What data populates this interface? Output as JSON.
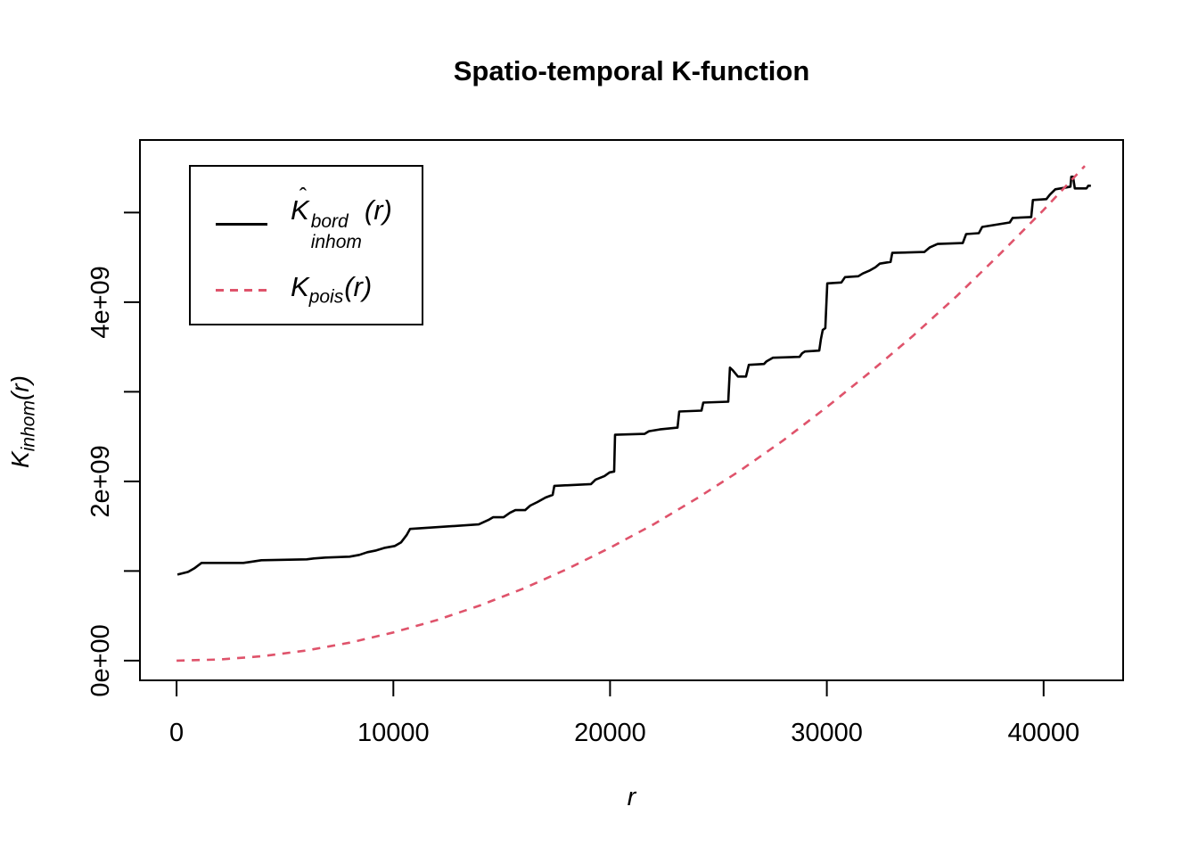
{
  "title": "Spatio-temporal K-function",
  "x_axis_label": "r",
  "y_axis_label": {
    "base": "K",
    "sub": "inhom",
    "arg": "(r)"
  },
  "legend": {
    "entries": [
      {
        "base": "K",
        "hat": "ˆ",
        "sup": "bord",
        "sub": "inhom",
        "arg": "(r)",
        "line": "solid",
        "color": "#000000"
      },
      {
        "base": "K",
        "hat": "",
        "sup": "",
        "sub": "pois",
        "arg": "(r)",
        "line": "dashed",
        "color": "#DF536B"
      }
    ]
  },
  "chart_data": {
    "type": "line",
    "title": "Spatio-temporal K-function",
    "xlabel": "r",
    "ylabel": "K_inhom(r)",
    "xlim": [
      -1690,
      43670
    ],
    "ylim": [
      -220000000,
      5810000000
    ],
    "grid": false,
    "legend_position": "top-left",
    "x_ticks": {
      "values": [
        0,
        10000,
        20000,
        30000,
        40000
      ],
      "labels": [
        "0",
        "10000",
        "20000",
        "30000",
        "40000"
      ]
    },
    "y_ticks": {
      "values": [
        0,
        1000000000.0,
        2000000000.0,
        3000000000.0,
        4000000000.0,
        5000000000.0
      ],
      "labels": [
        "0e+00",
        "",
        "2e+09",
        "",
        "4e+09",
        ""
      ]
    },
    "series": [
      {
        "name": "Khat-inhom-bord",
        "color": "#000000",
        "dash": "solid",
        "points": [
          [
            40,
            960000000.0
          ],
          [
            530,
            990000000.0
          ],
          [
            820,
            1030000000.0
          ],
          [
            1150,
            1090000000.0
          ],
          [
            3080,
            1090000000.0
          ],
          [
            3370,
            1100000000.0
          ],
          [
            3910,
            1120000000.0
          ],
          [
            6000,
            1130000000.0
          ],
          [
            6330,
            1140000000.0
          ],
          [
            6870,
            1150000000.0
          ],
          [
            7980,
            1160000000.0
          ],
          [
            8430,
            1180000000.0
          ],
          [
            8800,
            1210000000.0
          ],
          [
            9210,
            1230000000.0
          ],
          [
            9620,
            1260000000.0
          ],
          [
            10070,
            1280000000.0
          ],
          [
            10360,
            1320000000.0
          ],
          [
            10610,
            1400000000.0
          ],
          [
            10770,
            1470000000.0
          ],
          [
            13940,
            1520000000.0
          ],
          [
            14390,
            1570000000.0
          ],
          [
            14600,
            1600000000.0
          ],
          [
            15090,
            1600000000.0
          ],
          [
            15380,
            1650000000.0
          ],
          [
            15630,
            1680000000.0
          ],
          [
            16080,
            1680000000.0
          ],
          [
            16320,
            1730000000.0
          ],
          [
            16650,
            1770000000.0
          ],
          [
            17020,
            1820000000.0
          ],
          [
            17350,
            1850000000.0
          ],
          [
            17430,
            1950000000.0
          ],
          [
            19120,
            1970000000.0
          ],
          [
            19330,
            2020000000.0
          ],
          [
            19740,
            2060000000.0
          ],
          [
            19980,
            2100000000.0
          ],
          [
            20190,
            2110000000.0
          ],
          [
            20230,
            2520000000.0
          ],
          [
            21590,
            2530000000.0
          ],
          [
            21790,
            2560000000.0
          ],
          [
            22290,
            2580000000.0
          ],
          [
            22700,
            2590000000.0
          ],
          [
            23110,
            2600000000.0
          ],
          [
            23190,
            2780000000.0
          ],
          [
            24220,
            2790000000.0
          ],
          [
            24300,
            2880000000.0
          ],
          [
            25450,
            2890000000.0
          ],
          [
            25530,
            3270000000.0
          ],
          [
            25660,
            3240000000.0
          ],
          [
            25900,
            3170000000.0
          ],
          [
            26270,
            3170000000.0
          ],
          [
            26400,
            3300000000.0
          ],
          [
            27100,
            3310000000.0
          ],
          [
            27220,
            3340000000.0
          ],
          [
            27510,
            3380000000.0
          ],
          [
            28740,
            3390000000.0
          ],
          [
            28860,
            3430000000.0
          ],
          [
            28990,
            3450000000.0
          ],
          [
            29650,
            3460000000.0
          ],
          [
            29730,
            3590000000.0
          ],
          [
            29810,
            3690000000.0
          ],
          [
            29930,
            3710000000.0
          ],
          [
            30020,
            4210000000.0
          ],
          [
            30670,
            4220000000.0
          ],
          [
            30840,
            4280000000.0
          ],
          [
            31450,
            4290000000.0
          ],
          [
            31660,
            4320000000.0
          ],
          [
            31950,
            4350000000.0
          ],
          [
            32240,
            4390000000.0
          ],
          [
            32440,
            4430000000.0
          ],
          [
            32940,
            4450000000.0
          ],
          [
            33020,
            4550000000.0
          ],
          [
            34500,
            4560000000.0
          ],
          [
            34740,
            4610000000.0
          ],
          [
            35110,
            4650000000.0
          ],
          [
            36270,
            4660000000.0
          ],
          [
            36430,
            4760000000.0
          ],
          [
            37010,
            4770000000.0
          ],
          [
            37170,
            4840000000.0
          ],
          [
            38440,
            4890000000.0
          ],
          [
            38570,
            4940000000.0
          ],
          [
            39430,
            4950000000.0
          ],
          [
            39510,
            5140000000.0
          ],
          [
            40130,
            5150000000.0
          ],
          [
            40290,
            5200000000.0
          ],
          [
            40540,
            5260000000.0
          ],
          [
            41030,
            5280000000.0
          ],
          [
            41240,
            5290000000.0
          ],
          [
            41280,
            5400000000.0
          ],
          [
            41360,
            5400000000.0
          ],
          [
            41440,
            5270000000.0
          ],
          [
            41980,
            5270000000.0
          ],
          [
            42060,
            5300000000.0
          ],
          [
            42180,
            5300000000.0
          ]
        ]
      },
      {
        "name": "K-pois",
        "color": "#DF536B",
        "dash": "dashed",
        "points": [
          [
            0,
            0
          ],
          [
            2000,
            12600000.0
          ],
          [
            4000,
            50300000.0
          ],
          [
            6000,
            113000000.0
          ],
          [
            8000,
            201000000.0
          ],
          [
            10000,
            314000000.0
          ],
          [
            12000,
            452000000.0
          ],
          [
            14000,
            616000000.0
          ],
          [
            16000,
            804000000.0
          ],
          [
            18000,
            1020000000.0
          ],
          [
            20000,
            1260000000.0
          ],
          [
            22000,
            1520000000.0
          ],
          [
            24000,
            1810000000.0
          ],
          [
            26000,
            2120000000.0
          ],
          [
            28000,
            2460000000.0
          ],
          [
            30000,
            2830000000.0
          ],
          [
            32000,
            3220000000.0
          ],
          [
            34000,
            3630000000.0
          ],
          [
            36000,
            4070000000.0
          ],
          [
            38000,
            4540000000.0
          ],
          [
            40000,
            5030000000.0
          ],
          [
            41900,
            5520000000.0
          ]
        ]
      }
    ]
  }
}
